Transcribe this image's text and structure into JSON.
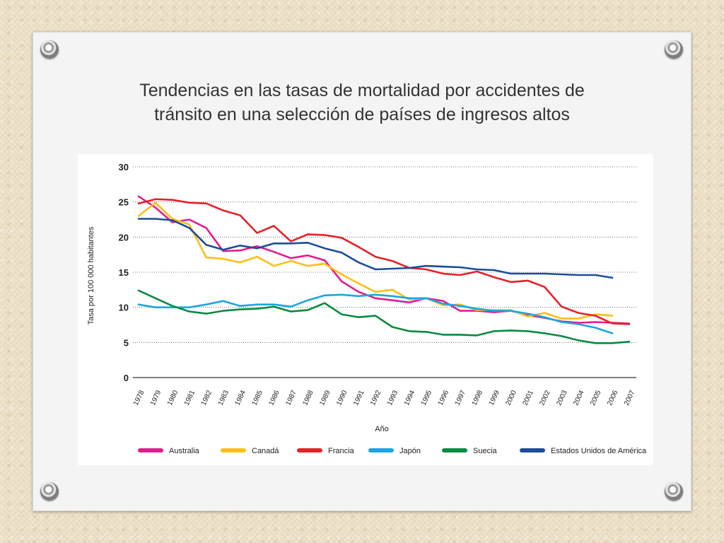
{
  "slide": {
    "title_line1": "Tendencias en las tasas de mortalidad por accidentes de",
    "title_line2": "tránsito en una selección de países de ingresos altos"
  },
  "chart_data": {
    "type": "line",
    "xlabel": "Año",
    "ylabel": "Tasa por 100 000 habitantes",
    "ylim": [
      0,
      30
    ],
    "yticks": [
      0,
      5,
      10,
      15,
      20,
      25,
      30
    ],
    "grid": "horizontal dotted",
    "legend_position": "bottom",
    "x": [
      1978,
      1979,
      1980,
      1981,
      1982,
      1983,
      1984,
      1985,
      1986,
      1987,
      1988,
      1989,
      1990,
      1991,
      1992,
      1993,
      1994,
      1995,
      1996,
      1997,
      1998,
      1999,
      2000,
      2001,
      2002,
      2003,
      2004,
      2005,
      2006,
      2007
    ],
    "series": [
      {
        "name": "Australia",
        "color": "#e21c8e",
        "values": [
          25.8,
          24.2,
          22.1,
          22.5,
          21.3,
          18.0,
          18.1,
          18.7,
          17.9,
          17.0,
          17.4,
          16.7,
          13.7,
          12.2,
          11.3,
          11.0,
          10.7,
          11.3,
          10.9,
          9.5,
          9.5,
          9.3,
          9.5,
          8.9,
          8.5,
          8.0,
          7.8,
          7.9,
          7.8,
          7.7
        ]
      },
      {
        "name": "Canadá",
        "color": "#fdbf16",
        "values": [
          23.0,
          24.9,
          22.6,
          21.8,
          17.1,
          16.9,
          16.4,
          17.2,
          15.9,
          16.6,
          15.9,
          16.2,
          14.7,
          13.4,
          12.2,
          12.5,
          11.1,
          11.3,
          10.3,
          10.4,
          9.6,
          9.6,
          9.6,
          8.7,
          9.2,
          8.4,
          8.4,
          9.0,
          8.8,
          null
        ]
      },
      {
        "name": "Francia",
        "color": "#e32228",
        "values": [
          24.8,
          25.4,
          25.3,
          24.9,
          24.8,
          23.8,
          23.1,
          20.6,
          21.6,
          19.4,
          20.4,
          20.3,
          19.9,
          18.6,
          17.2,
          16.6,
          15.6,
          15.4,
          14.8,
          14.6,
          15.1,
          14.3,
          13.6,
          13.8,
          12.9,
          10.1,
          9.2,
          8.8,
          7.7,
          7.6
        ]
      },
      {
        "name": "Japón",
        "color": "#1ba6e0",
        "values": [
          10.4,
          10.0,
          10.0,
          10.0,
          10.4,
          10.9,
          10.2,
          10.4,
          10.4,
          10.1,
          11.0,
          11.7,
          11.8,
          11.6,
          11.8,
          11.6,
          11.3,
          11.3,
          10.5,
          10.2,
          9.8,
          9.5,
          9.5,
          9.1,
          8.6,
          7.9,
          7.6,
          7.1,
          6.3,
          null
        ]
      },
      {
        "name": "Suecia",
        "color": "#0a8a3e",
        "values": [
          12.4,
          11.3,
          10.2,
          9.4,
          9.1,
          9.5,
          9.7,
          9.8,
          10.1,
          9.4,
          9.6,
          10.6,
          9.0,
          8.6,
          8.8,
          7.2,
          6.6,
          6.5,
          6.1,
          6.1,
          6.0,
          6.6,
          6.7,
          6.6,
          6.3,
          5.9,
          5.3,
          4.9,
          4.9,
          5.1
        ]
      },
      {
        "name": "Estados Unidos de América",
        "color": "#1b4d9a",
        "values": [
          22.6,
          22.6,
          22.4,
          21.3,
          18.9,
          18.2,
          18.8,
          18.4,
          19.1,
          19.1,
          19.2,
          18.4,
          17.8,
          16.4,
          15.4,
          15.5,
          15.6,
          15.9,
          15.8,
          15.7,
          15.4,
          15.3,
          14.8,
          14.8,
          14.8,
          14.7,
          14.6,
          14.6,
          14.2,
          null
        ]
      }
    ]
  }
}
